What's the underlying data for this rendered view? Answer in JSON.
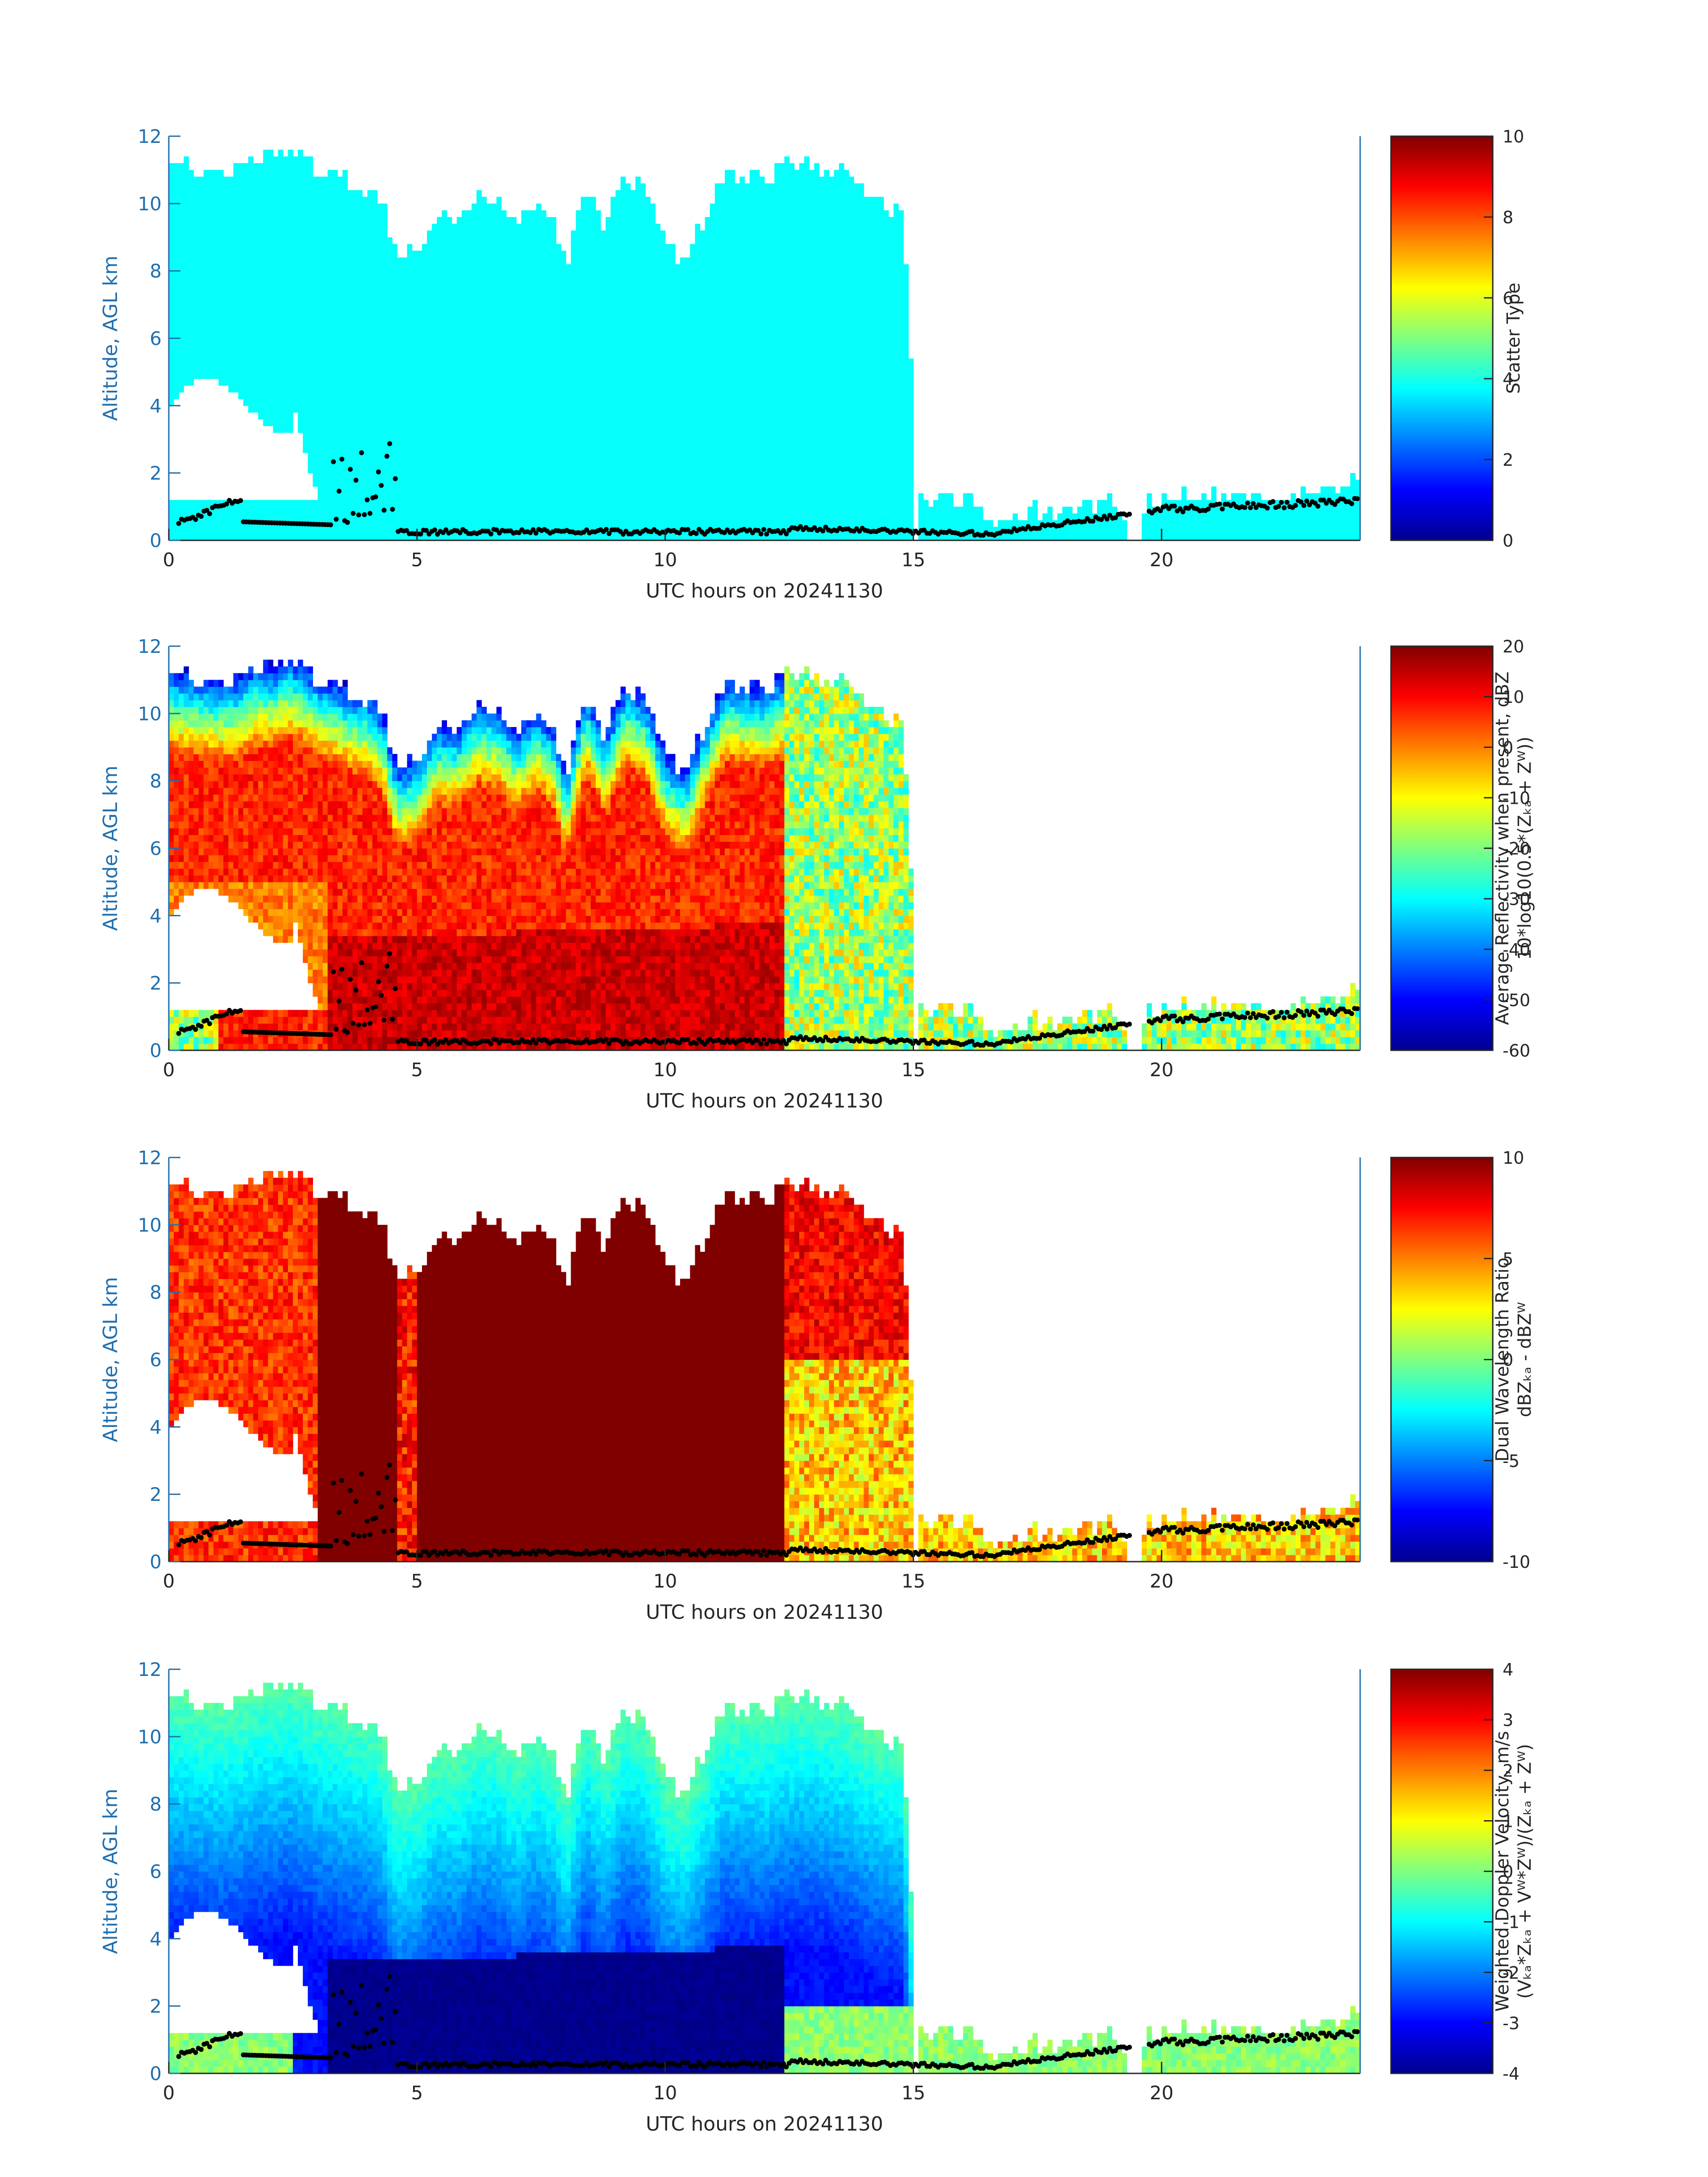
{
  "chart_data": [
    {
      "type": "heatmap",
      "xlabel": "UTC hours on 20241130",
      "ylabel": "Altitude, AGL km",
      "xlim": [
        0,
        24
      ],
      "ylim": [
        0,
        12
      ],
      "xticks": [
        0,
        5,
        10,
        15,
        20
      ],
      "yticks": [
        0,
        2,
        4,
        6,
        8,
        10,
        12
      ],
      "colorbar": {
        "label_lines": [
          "Scatter Type"
        ],
        "range": [
          0,
          10
        ],
        "ticks": [
          0,
          2,
          4,
          6,
          8,
          10
        ],
        "colormap": "jet"
      },
      "field": "scatter",
      "fill_value": 3.8
    },
    {
      "type": "heatmap",
      "xlabel": "UTC hours on 20241130",
      "ylabel": "Altitude, AGL km",
      "xlim": [
        0,
        24
      ],
      "ylim": [
        0,
        12
      ],
      "xticks": [
        0,
        5,
        10,
        15,
        20
      ],
      "yticks": [
        0,
        2,
        4,
        6,
        8,
        10,
        12
      ],
      "colorbar": {
        "label_lines": [
          "Average Reflectivity when present, dBZ",
          "10*log10(0.5*(Zₖₐ + Zᵂ))"
        ],
        "range": [
          -60,
          20
        ],
        "ticks": [
          -60,
          -50,
          -40,
          -30,
          -20,
          -10,
          0,
          10,
          20
        ],
        "colormap": "jet"
      },
      "field": "reflectivity"
    },
    {
      "type": "heatmap",
      "xlabel": "UTC hours on 20241130",
      "ylabel": "Altitude, AGL km",
      "xlim": [
        0,
        24
      ],
      "ylim": [
        0,
        12
      ],
      "xticks": [
        0,
        5,
        10,
        15,
        20
      ],
      "yticks": [
        0,
        2,
        4,
        6,
        8,
        10,
        12
      ],
      "colorbar": {
        "label_lines": [
          "Dual Wavelength Ratio",
          "dBZₖₐ - dBZᵂ"
        ],
        "range": [
          -10,
          10
        ],
        "ticks": [
          -10,
          -5,
          0,
          5,
          10
        ],
        "colormap": "jet"
      },
      "field": "dwr"
    },
    {
      "type": "heatmap",
      "xlabel": "UTC hours on 20241130",
      "ylabel": "Altitude, AGL km",
      "xlim": [
        0,
        24
      ],
      "ylim": [
        0,
        12
      ],
      "xticks": [
        0,
        5,
        10,
        15,
        20
      ],
      "yticks": [
        0,
        2,
        4,
        6,
        8,
        10,
        12
      ],
      "colorbar": {
        "label_lines": [
          "Weighted Doppler Velocity, m/s",
          "(Vₖₐ*Zₖₐ + Vᵂ*Zᵂ)/(Zₖₐ + Zᵂ)"
        ],
        "range": [
          -4,
          4
        ],
        "ticks": [
          -4,
          -3,
          -2,
          -1,
          0,
          1,
          2,
          3,
          4
        ],
        "colormap": "jet"
      },
      "field": "velocity"
    }
  ],
  "cloud_top_km": {
    "hours": [
      0,
      0.3,
      0.7,
      1.0,
      1.4,
      1.8,
      2.1,
      2.4,
      2.8,
      3.0,
      3.3,
      3.7,
      4.0,
      4.3,
      4.6,
      5.0,
      5.4,
      5.8,
      6.2,
      6.6,
      7.0,
      7.4,
      7.8,
      8.0,
      8.4,
      8.8,
      9.2,
      9.6,
      10.0,
      10.4,
      10.8,
      11.2,
      11.6,
      12.0,
      12.4,
      12.8,
      13.2,
      13.6,
      14.0,
      14.4,
      14.8,
      15.1,
      15.4,
      15.8,
      16.2,
      16.6,
      17.0,
      17.4,
      17.8,
      18.2,
      18.6,
      19.0,
      19.4,
      19.8,
      20.2,
      20.6,
      21.0,
      21.4,
      21.8,
      22.2,
      22.6,
      23.0,
      23.4,
      23.8,
      24.0
    ],
    "tops": [
      11.2,
      11.1,
      11.0,
      10.9,
      11.0,
      11.4,
      11.3,
      11.6,
      11.3,
      11.0,
      10.9,
      10.6,
      10.5,
      10.0,
      8.3,
      8.6,
      9.6,
      9.5,
      10.2,
      10.1,
      9.4,
      10.1,
      9.4,
      8.1,
      10.6,
      9.3,
      10.8,
      10.4,
      8.7,
      8.2,
      9.6,
      10.9,
      10.8,
      10.7,
      11.1,
      11.2,
      11.0,
      10.9,
      10.3,
      10.0,
      9.8,
      1.2,
      1.1,
      1.2,
      1.1,
      0.6,
      0.7,
      0.9,
      0.9,
      1.0,
      1.1,
      1.1,
      0.6,
      1.2,
      1.3,
      1.4,
      1.3,
      1.3,
      1.4,
      1.3,
      1.4,
      1.5,
      1.6,
      1.7,
      2.0
    ]
  }
}
